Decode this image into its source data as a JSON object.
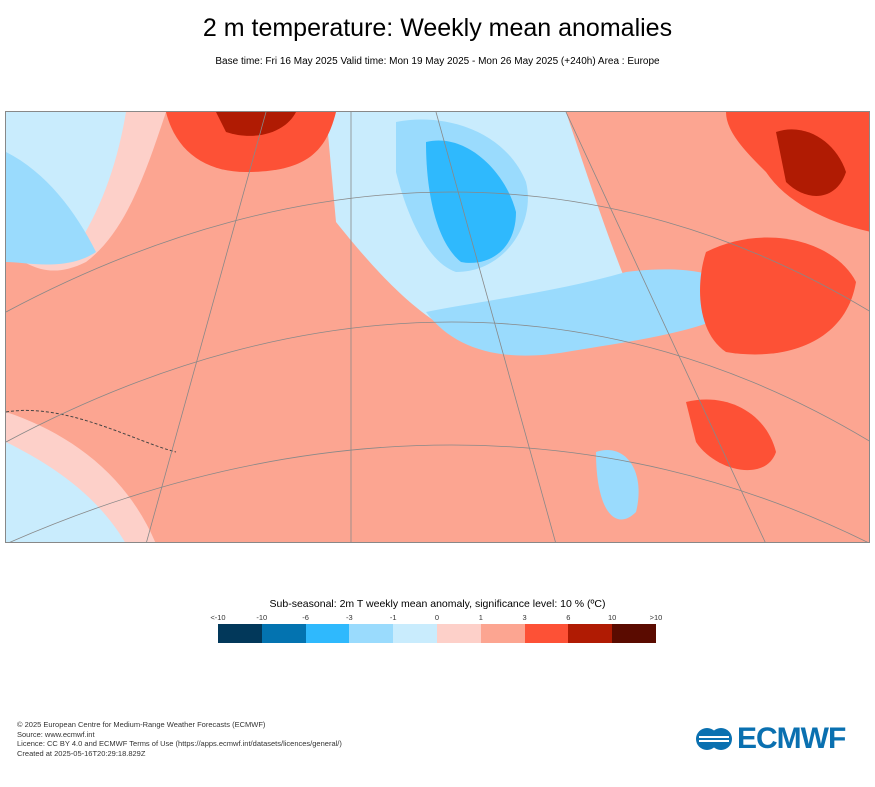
{
  "header": {
    "title": "2 m temperature: Weekly mean anomalies",
    "subtitle": "Base time: Fri 16 May 2025 Valid time: Mon 19 May 2025 - Mon 26 May 2025 (+240h) Area : Europe"
  },
  "legend": {
    "title": "Sub-seasonal: 2m T weekly mean anomaly, significance level: 10 % (ºC)",
    "ticks": [
      "<-10",
      "-10",
      "-6",
      "-3",
      "-1",
      "0",
      "1",
      "3",
      "6",
      "10",
      ">10"
    ],
    "colors": [
      "#02385a",
      "#0373b0",
      "#2fb9fd",
      "#9adbfd",
      "#c9ecfd",
      "#fdd0c9",
      "#fca591",
      "#fd5136",
      "#b01b03",
      "#5a0b00"
    ]
  },
  "footer": {
    "lines": [
      "© 2025 European Centre for Medium-Range Weather Forecasts (ECMWF)",
      "Source: www.ecmwf.int",
      "Licence: CC BY 4.0 and ECMWF Terms of Use (https://apps.ecmwf.int/datasets/licences/general/)",
      "Created at 2025-05-16T20:29:18.829Z"
    ],
    "logo": "ECMWF"
  }
}
